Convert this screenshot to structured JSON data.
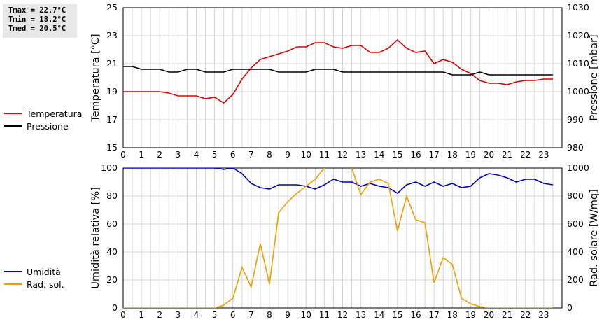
{
  "stats": {
    "tmax": "Tmax = 22.7°C",
    "tmin": "Tmin = 18.2°C",
    "tmed": "Tmed = 20.5°C"
  },
  "legend_top": [
    {
      "label": "Temperatura",
      "color": "#dd0000"
    },
    {
      "label": "Pressione",
      "color": "#000000"
    }
  ],
  "legend_bottom": [
    {
      "label": "Umidità",
      "color": "#0000c0"
    },
    {
      "label": "Rad. sol.",
      "color": "#f0a000"
    }
  ],
  "chart_data": [
    {
      "type": "line",
      "ylabel": "Temperatura [°C]",
      "y2label": "Pressione [mbar]",
      "xlim": [
        0,
        24
      ],
      "x_ticks": [
        "0",
        "1",
        "2",
        "3",
        "4",
        "5",
        "6",
        "7",
        "8",
        "9",
        "10",
        "11",
        "12",
        "13",
        "14",
        "15",
        "16",
        "17",
        "18",
        "19",
        "20",
        "21",
        "22",
        "23"
      ],
      "ylim": [
        15,
        25
      ],
      "y_ticks": [
        "15",
        "17",
        "19",
        "21",
        "23",
        "25"
      ],
      "y2lim": [
        980,
        1030
      ],
      "y2_ticks": [
        "980",
        "990",
        "1000",
        "1010",
        "1020",
        "1030"
      ],
      "grid": true,
      "series": [
        {
          "name": "Temperatura",
          "axis": "left",
          "color": "#dd0000",
          "x": [
            0,
            0.5,
            1,
            1.5,
            2,
            2.5,
            3,
            3.5,
            4,
            4.5,
            5,
            5.5,
            6,
            6.5,
            7,
            7.5,
            8,
            8.5,
            9,
            9.5,
            10,
            10.5,
            11,
            11.5,
            12,
            12.5,
            13,
            13.5,
            14,
            14.5,
            15,
            15.5,
            16,
            16.5,
            17,
            17.5,
            18,
            18.5,
            19,
            19.5,
            20,
            20.5,
            21,
            21.5,
            22,
            22.5,
            23,
            23.5
          ],
          "y": [
            19.0,
            19.0,
            19.0,
            19.0,
            19.0,
            18.9,
            18.7,
            18.7,
            18.7,
            18.5,
            18.6,
            18.2,
            18.8,
            19.9,
            20.7,
            21.3,
            21.5,
            21.7,
            21.9,
            22.2,
            22.2,
            22.5,
            22.5,
            22.2,
            22.1,
            22.3,
            22.3,
            21.8,
            21.8,
            22.1,
            22.7,
            22.1,
            21.8,
            21.9,
            21.0,
            21.3,
            21.1,
            20.6,
            20.3,
            19.8,
            19.6,
            19.6,
            19.5,
            19.7,
            19.8,
            19.8,
            19.9,
            19.9
          ]
        },
        {
          "name": "Pressione",
          "axis": "right",
          "color": "#000000",
          "x": [
            0,
            0.5,
            1,
            1.5,
            2,
            2.5,
            3,
            3.5,
            4,
            4.5,
            5,
            5.5,
            6,
            6.5,
            7,
            7.5,
            8,
            8.5,
            9,
            9.5,
            10,
            10.5,
            11,
            11.5,
            12,
            12.5,
            13,
            13.5,
            14,
            14.5,
            15,
            15.5,
            16,
            16.5,
            17,
            17.5,
            18,
            18.5,
            19,
            19.5,
            20,
            20.5,
            21,
            21.5,
            22,
            22.5,
            23,
            23.5
          ],
          "y": [
            1009,
            1009,
            1008,
            1008,
            1008,
            1007,
            1007,
            1008,
            1008,
            1007,
            1007,
            1007,
            1008,
            1008,
            1008,
            1008,
            1008,
            1007,
            1007,
            1007,
            1007,
            1008,
            1008,
            1008,
            1007,
            1007,
            1007,
            1007,
            1007,
            1007,
            1007,
            1007,
            1007,
            1007,
            1007,
            1007,
            1006,
            1006,
            1006,
            1007,
            1006,
            1006,
            1006,
            1006,
            1006,
            1006,
            1006,
            1006
          ]
        }
      ]
    },
    {
      "type": "line",
      "ylabel": "Umidità relativa [%]",
      "y2label": "Rad. solare [W/mq]",
      "xlim": [
        0,
        24
      ],
      "x_ticks": [
        "0",
        "1",
        "2",
        "3",
        "4",
        "5",
        "6",
        "7",
        "8",
        "9",
        "10",
        "11",
        "12",
        "13",
        "14",
        "15",
        "16",
        "17",
        "18",
        "19",
        "20",
        "21",
        "22",
        "23"
      ],
      "ylim": [
        0,
        100
      ],
      "y_ticks": [
        "0",
        "20",
        "40",
        "60",
        "80",
        "100"
      ],
      "y2lim": [
        0,
        1000
      ],
      "y2_ticks": [
        "0",
        "200",
        "400",
        "600",
        "800",
        "1000"
      ],
      "grid": true,
      "series": [
        {
          "name": "Umidità",
          "axis": "left",
          "color": "#0000c0",
          "x": [
            0,
            0.5,
            1,
            1.5,
            2,
            2.5,
            3,
            3.5,
            4,
            4.5,
            5,
            5.5,
            6,
            6.5,
            7,
            7.5,
            8,
            8.5,
            9,
            9.5,
            10,
            10.5,
            11,
            11.5,
            12,
            12.5,
            13,
            13.5,
            14,
            14.5,
            15,
            15.5,
            16,
            16.5,
            17,
            17.5,
            18,
            18.5,
            19,
            19.5,
            20,
            20.5,
            21,
            21.5,
            22,
            22.5,
            23,
            23.5
          ],
          "y": [
            100,
            100,
            100,
            100,
            100,
            100,
            100,
            100,
            100,
            100,
            100,
            99,
            100,
            96,
            89,
            86,
            85,
            88,
            88,
            88,
            87,
            85,
            88,
            92,
            90,
            90,
            87,
            89,
            87,
            86,
            82,
            88,
            90,
            87,
            90,
            87,
            89,
            86,
            87,
            93,
            96,
            95,
            93,
            90,
            92,
            92,
            89,
            88
          ]
        },
        {
          "name": "Rad. sol.",
          "axis": "right",
          "color": "#f0a000",
          "x": [
            0,
            0.5,
            1,
            1.5,
            2,
            2.5,
            3,
            3.5,
            4,
            4.5,
            5,
            5.5,
            6,
            6.5,
            7,
            7.5,
            8,
            8.5,
            9,
            9.5,
            10,
            10.5,
            11,
            11.5,
            12,
            12.5,
            13,
            13.5,
            14,
            14.5,
            15,
            15.5,
            16,
            16.5,
            17,
            17.5,
            18,
            18.5,
            19,
            19.5,
            20,
            20.5,
            21,
            21.5,
            22,
            22.5,
            23,
            23.5
          ],
          "y": [
            0,
            0,
            0,
            0,
            0,
            0,
            0,
            0,
            0,
            0,
            0,
            20,
            70,
            290,
            150,
            460,
            170,
            680,
            760,
            820,
            870,
            920,
            1000,
            1100,
            1120,
            1000,
            810,
            900,
            920,
            890,
            550,
            800,
            630,
            610,
            180,
            360,
            310,
            70,
            30,
            10,
            0,
            0,
            0,
            0,
            0,
            0,
            0,
            0
          ]
        }
      ]
    }
  ]
}
